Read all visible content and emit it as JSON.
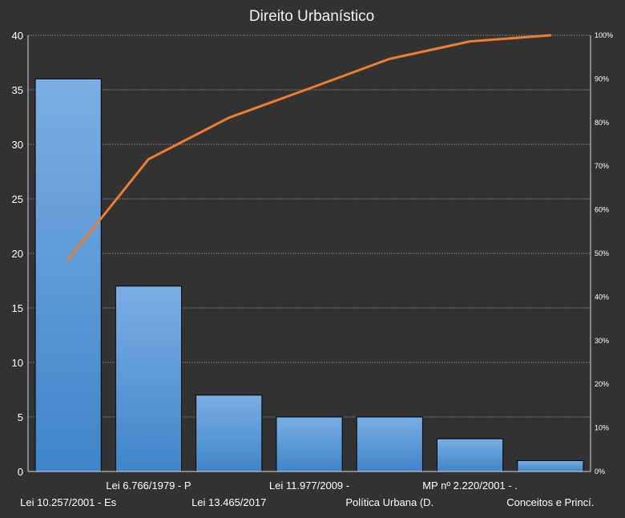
{
  "chart_data": {
    "type": "bar",
    "title": "Direito Urbanístico",
    "categories": [
      "Lei 10.257/2001 - Es",
      "Lei 6.766/1979 - P",
      "Lei 13.465/2017",
      "Lei 11.977/2009 -",
      "Política Urbana (D.",
      "MP nº 2.220/2001 - .",
      "Conceitos e Princí."
    ],
    "series": [
      {
        "values": [
          36,
          17,
          7,
          5,
          5,
          3,
          1
        ]
      },
      {
        "values": [
          48.6,
          71.6,
          81.1,
          87.8,
          94.6,
          98.6,
          100
        ],
        "axis": "right"
      }
    ],
    "ylim": [
      0,
      40
    ],
    "yticks": [
      "0",
      "5",
      "10",
      "15",
      "20",
      "25",
      "30",
      "35",
      "40"
    ],
    "y2lim": [
      0,
      100
    ],
    "y2ticks": [
      "0%",
      "10%",
      "20%",
      "30%",
      "40%",
      "50%",
      "60%",
      "70%",
      "80%",
      "90%",
      "100%"
    ],
    "grid": true,
    "colors": {
      "bar_top": "#7aaee4",
      "bar_bottom": "#3f85c9",
      "bar_border": "#000000",
      "line": "#ed7d31",
      "background": "#323232",
      "grid": "#8c8c8c"
    }
  }
}
